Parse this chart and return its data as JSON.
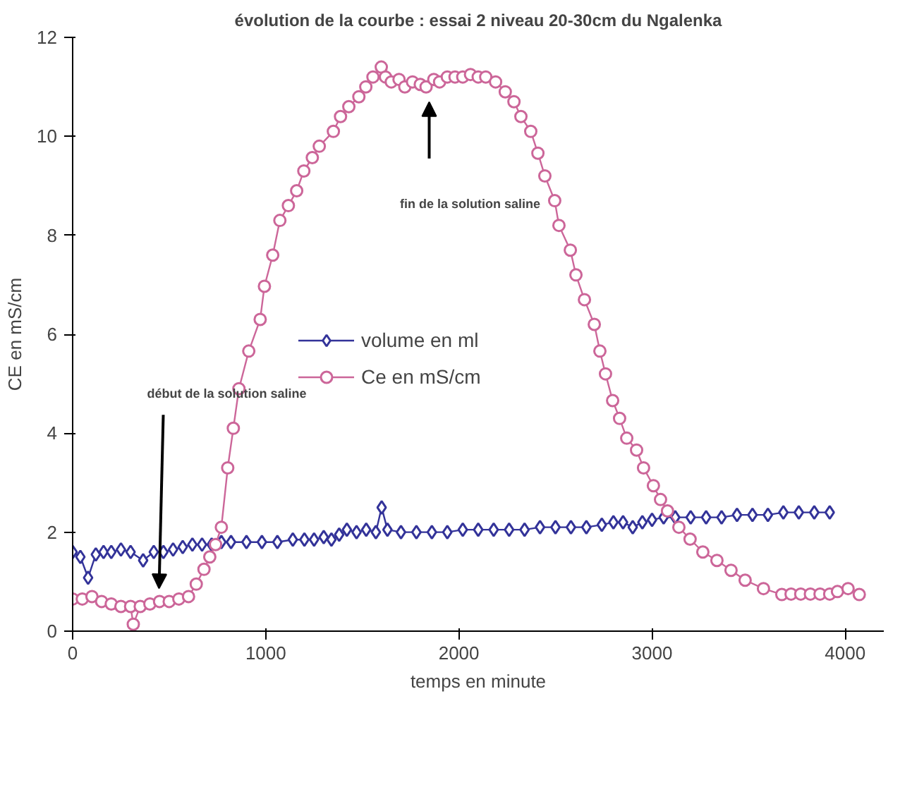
{
  "chart_data": {
    "type": "line",
    "title": "évolution de la courbe : essai 2 niveau 20-30cm du Ngalenka",
    "xlabel": "temps en minute",
    "ylabel": "CE en mS/cm",
    "xlim": [
      0,
      4200
    ],
    "ylim": [
      0,
      12
    ],
    "xticks": [
      0,
      1000,
      2000,
      3000,
      4000
    ],
    "yticks": [
      0,
      2,
      4,
      6,
      8,
      10,
      12
    ],
    "grid": false,
    "legend": "center",
    "series": [
      {
        "name": "volume en ml",
        "color": "#333399",
        "marker": "diamond",
        "x": [
          0,
          40,
          80,
          120,
          160,
          200,
          250,
          300,
          365,
          420,
          470,
          520,
          570,
          620,
          670,
          720,
          770,
          820,
          900,
          980,
          1060,
          1140,
          1200,
          1250,
          1300,
          1340,
          1380,
          1420,
          1470,
          1520,
          1570,
          1600,
          1630,
          1700,
          1780,
          1860,
          1940,
          2020,
          2100,
          2180,
          2260,
          2340,
          2420,
          2500,
          2580,
          2660,
          2740,
          2800,
          2850,
          2900,
          2950,
          3000,
          3060,
          3120,
          3200,
          3280,
          3360,
          3440,
          3520,
          3600,
          3680,
          3760,
          3840,
          3920
        ],
        "values": [
          1.6,
          1.5,
          1.08,
          1.55,
          1.6,
          1.6,
          1.65,
          1.6,
          1.43,
          1.6,
          1.6,
          1.65,
          1.7,
          1.75,
          1.75,
          1.75,
          1.8,
          1.8,
          1.8,
          1.8,
          1.8,
          1.85,
          1.85,
          1.85,
          1.9,
          1.85,
          1.95,
          2.05,
          2.0,
          2.05,
          2.0,
          2.5,
          2.05,
          2.0,
          2.0,
          2.0,
          2.0,
          2.05,
          2.05,
          2.05,
          2.05,
          2.05,
          2.1,
          2.1,
          2.1,
          2.1,
          2.15,
          2.2,
          2.2,
          2.1,
          2.2,
          2.25,
          2.3,
          2.3,
          2.3,
          2.3,
          2.3,
          2.35,
          2.35,
          2.35,
          2.4,
          2.4,
          2.4,
          2.4
        ]
      },
      {
        "name": "Ce en mS/cm",
        "color": "#cc6699",
        "marker": "circle",
        "x": [
          0,
          50,
          100,
          150,
          200,
          250,
          300,
          314,
          350,
          400,
          450,
          500,
          550,
          600,
          640,
          680,
          710,
          740,
          770,
          803,
          832,
          861,
          912,
          971,
          993,
          1036,
          1073,
          1117,
          1160,
          1197,
          1241,
          1277,
          1350,
          1387,
          1430,
          1482,
          1518,
          1555,
          1598,
          1620,
          1650,
          1690,
          1720,
          1760,
          1800,
          1830,
          1870,
          1900,
          1940,
          1980,
          2020,
          2060,
          2100,
          2139,
          2190,
          2240,
          2285,
          2321,
          2372,
          2409,
          2445,
          2496,
          2518,
          2577,
          2606,
          2650,
          2701,
          2730,
          2759,
          2796,
          2832,
          2869,
          2920,
          2956,
          3007,
          3044,
          3080,
          3139,
          3197,
          3263,
          3336,
          3409,
          3482,
          3577,
          3672,
          3720,
          3770,
          3820,
          3870,
          3920,
          3960,
          4015,
          4073
        ],
        "values": [
          0.65,
          0.65,
          0.7,
          0.6,
          0.55,
          0.5,
          0.5,
          0.14,
          0.5,
          0.55,
          0.6,
          0.6,
          0.65,
          0.7,
          0.95,
          1.25,
          1.5,
          1.75,
          2.1,
          3.3,
          4.1,
          4.9,
          5.66,
          6.3,
          6.97,
          7.6,
          8.3,
          8.6,
          8.9,
          9.3,
          9.57,
          9.8,
          10.1,
          10.4,
          10.6,
          10.8,
          11.0,
          11.2,
          11.4,
          11.2,
          11.1,
          11.15,
          11.0,
          11.1,
          11.05,
          11.0,
          11.15,
          11.1,
          11.2,
          11.2,
          11.2,
          11.25,
          11.2,
          11.2,
          11.1,
          10.9,
          10.7,
          10.4,
          10.1,
          9.66,
          9.2,
          8.7,
          8.2,
          7.7,
          7.2,
          6.7,
          6.2,
          5.66,
          5.2,
          4.66,
          4.3,
          3.9,
          3.66,
          3.3,
          2.94,
          2.66,
          2.43,
          2.1,
          1.86,
          1.6,
          1.43,
          1.23,
          1.03,
          0.86,
          0.74,
          0.75,
          0.75,
          0.75,
          0.75,
          0.75,
          0.8,
          0.86,
          0.74
        ]
      }
    ],
    "annotations": [
      "début de la solution saline",
      "fin de la solution saline"
    ]
  }
}
